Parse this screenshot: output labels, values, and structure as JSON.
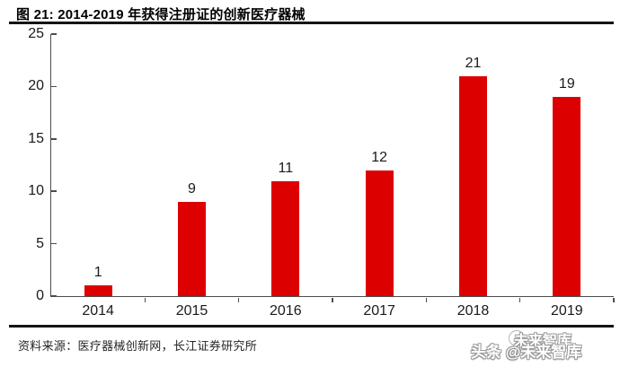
{
  "header": {
    "title": "图 21: 2014-2019 年获得注册证的创新医疗器械"
  },
  "chart_data": {
    "type": "bar",
    "title": "图 21: 2014-2019 年获得注册证的创新医疗器械",
    "categories": [
      "2014",
      "2015",
      "2016",
      "2017",
      "2018",
      "2019"
    ],
    "values": [
      1,
      9,
      11,
      12,
      21,
      19
    ],
    "xlabel": "",
    "ylabel": "",
    "ylim": [
      0,
      25
    ],
    "yticks": [
      0,
      5,
      10,
      15,
      20,
      25
    ],
    "grid": false,
    "legend": false,
    "data_labels": true,
    "bar_color": "#DD0000",
    "axis_color": "#4d4d4d",
    "label_color": "#1a1a1a"
  },
  "footer": {
    "source": "资料来源：医疗器械创新网，长江证券研究所"
  },
  "watermark": {
    "ghost": "未来智库",
    "main": "头条 @未来智库"
  }
}
